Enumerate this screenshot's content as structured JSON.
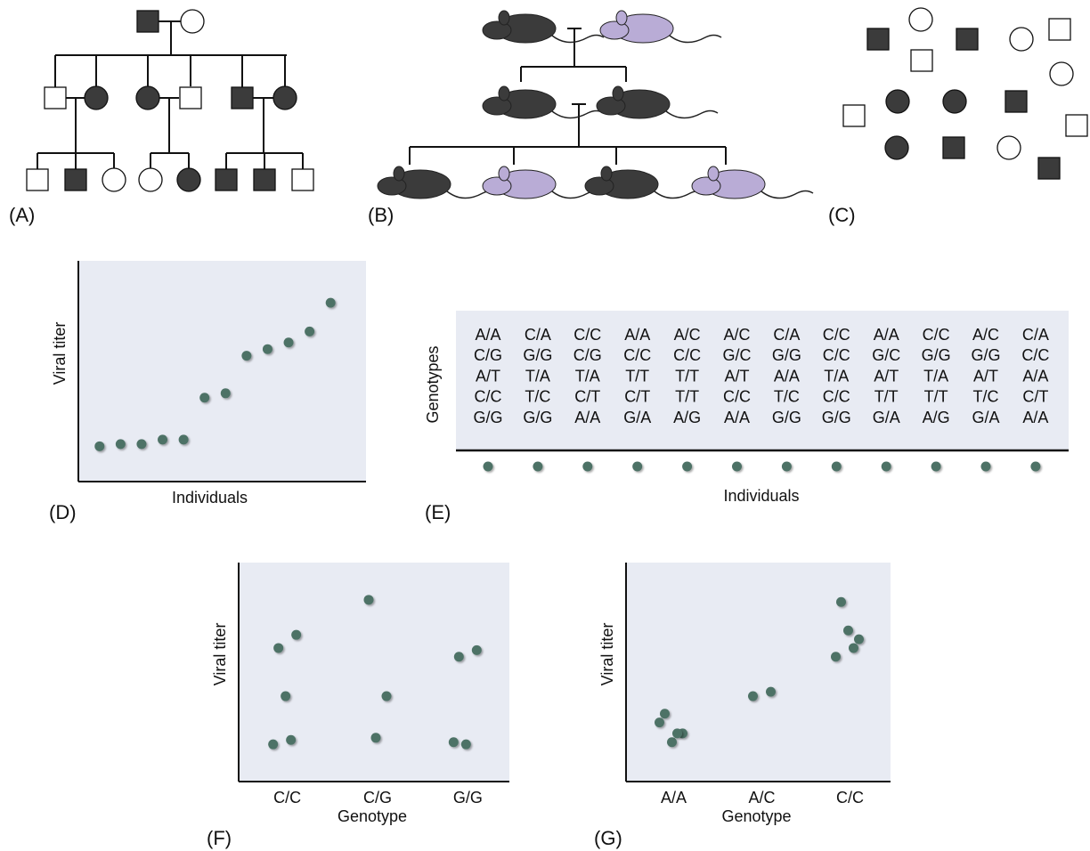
{
  "panel_labels": [
    "(A)",
    "(B)",
    "(C)",
    "(D)",
    "(E)",
    "(F)",
    "(G)"
  ],
  "chart_data": [
    {
      "type": "dots",
      "y_label": "Viral titer",
      "x_label": "Individuals",
      "values": [
        16,
        17,
        17,
        19,
        19,
        38,
        40,
        57,
        60,
        63,
        68,
        81
      ],
      "ylim": [
        0,
        100
      ]
    },
    {
      "type": "strip",
      "y_label": "Viral titer",
      "x_label": "Genotype",
      "categories": [
        "C/C",
        "C/G",
        "G/G"
      ],
      "values": [
        [
          61,
          67,
          39,
          17,
          19
        ],
        [
          83,
          39,
          20
        ],
        [
          57,
          60,
          17,
          18
        ]
      ],
      "ylim": [
        0,
        100
      ]
    },
    {
      "type": "strip",
      "y_label": "Viral titer",
      "x_label": "Genotype",
      "categories": [
        "A/A",
        "A/C",
        "C/C"
      ],
      "values": [
        [
          31,
          22,
          18,
          27,
          22
        ],
        [
          39,
          41
        ],
        [
          82,
          65,
          69,
          57,
          61
        ]
      ],
      "ylim": [
        0,
        100
      ]
    }
  ],
  "table": {
    "y_label": "Genotypes",
    "x_label": "Individuals",
    "rows": [
      [
        "A/A",
        "C/A",
        "C/C",
        "A/A",
        "A/C",
        "A/C",
        "C/A",
        "C/C",
        "A/A",
        "C/C",
        "A/C",
        "C/A"
      ],
      [
        "C/G",
        "G/G",
        "C/G",
        "C/C",
        "C/C",
        "G/C",
        "G/G",
        "C/C",
        "G/C",
        "G/G",
        "G/G",
        "C/C"
      ],
      [
        "A/T",
        "T/A",
        "T/A",
        "T/T",
        "T/T",
        "A/T",
        "A/A",
        "T/A",
        "A/T",
        "T/A",
        "A/T",
        "A/A"
      ],
      [
        "C/C",
        "T/C",
        "C/T",
        "C/T",
        "T/T",
        "C/C",
        "T/C",
        "C/C",
        "T/T",
        "T/T",
        "T/C",
        "C/T"
      ],
      [
        "G/G",
        "G/G",
        "A/A",
        "G/A",
        "A/G",
        "A/A",
        "G/G",
        "G/G",
        "G/A",
        "A/G",
        "G/A",
        "A/A"
      ]
    ]
  }
}
